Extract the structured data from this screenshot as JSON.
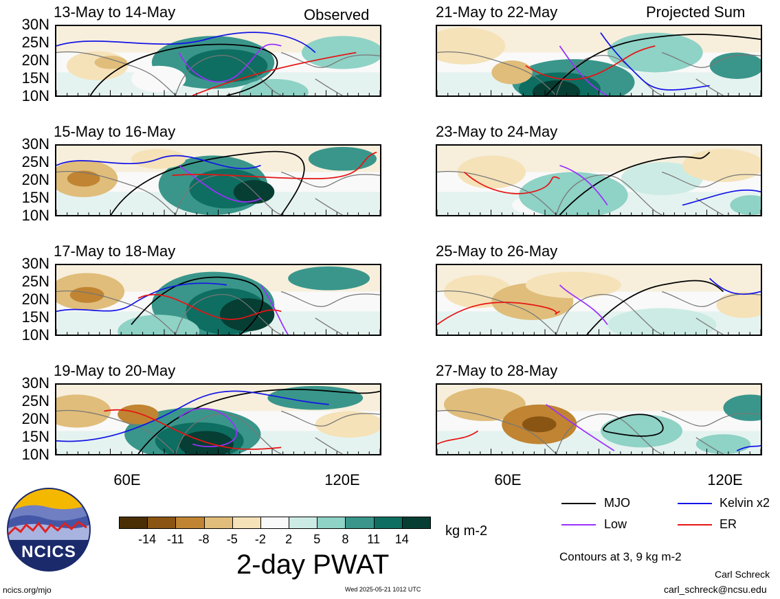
{
  "panels_left": [
    {
      "title": "13-May to 14-May",
      "corner": "Observed"
    },
    {
      "title": "15-May to 16-May",
      "corner": ""
    },
    {
      "title": "17-May to 18-May",
      "corner": ""
    },
    {
      "title": "19-May to 20-May",
      "corner": ""
    }
  ],
  "panels_right": [
    {
      "title": "21-May to 22-May",
      "corner": "Projected Sum"
    },
    {
      "title": "23-May to 24-May",
      "corner": ""
    },
    {
      "title": "25-May to 26-May",
      "corner": ""
    },
    {
      "title": "27-May to 28-May",
      "corner": ""
    }
  ],
  "lat_labels": [
    "30N",
    "25N",
    "20N",
    "15N",
    "10N"
  ],
  "lon_labels": [
    "60E",
    "120E"
  ],
  "colorbar": {
    "colors": [
      "#4a2f05",
      "#8a5512",
      "#c08432",
      "#e0bd7a",
      "#f5e2b8",
      "#f9f9f9",
      "#ccebe4",
      "#8fd2c6",
      "#3a968b",
      "#0e6e61",
      "#063e34"
    ],
    "ticks": [
      "-14",
      "-11",
      "-8",
      "-5",
      "-2",
      "2",
      "5",
      "8",
      "11",
      "14"
    ],
    "units": "kg m-2",
    "title": "2-day PWAT"
  },
  "legend": {
    "mjo": {
      "label": "MJO",
      "color": "#000000"
    },
    "kelvin": {
      "label": "Kelvin x2",
      "color": "#1414e6"
    },
    "low": {
      "label": "Low",
      "color": "#9b30ff"
    },
    "er": {
      "label": "ER",
      "color": "#e61414"
    },
    "contours_note": "Contours at 3, 9 kg m-2"
  },
  "logo_text": "NCICS",
  "credit_name": "Carl Schreck",
  "credit_email": "carl_schreck@ncsu.edu",
  "url": "ncics.org/mjo",
  "timestamp": "Wed 2025-05-21 1012 UTC"
}
